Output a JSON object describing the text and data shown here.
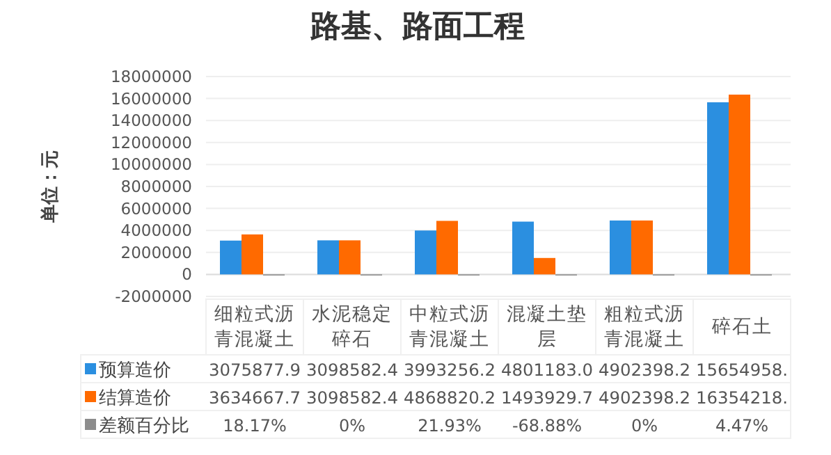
{
  "chart_data": {
    "type": "bar",
    "title": "路基、路面工程",
    "ylabel": "单位：元",
    "categories": [
      "细粒式沥青混凝土",
      "水泥稳定碎石",
      "中粒式沥青混凝土",
      "混凝土垫层",
      "粗粒式沥青混凝土",
      "碎石土"
    ],
    "series": [
      {
        "name": "预算造价",
        "color": "#2b8fe0",
        "values": [
          3075877.9,
          3098582.4,
          3993256.2,
          4801183.0,
          4902398.2,
          15654958
        ],
        "value_labels": [
          "3075877.9",
          "3098582.4",
          "3993256.2",
          "4801183.0",
          "4902398.2",
          "15654958."
        ]
      },
      {
        "name": "结算造价",
        "color": "#ff6a00",
        "values": [
          3634667.7,
          3098582.4,
          4868820.2,
          1493929.7,
          4902398.2,
          16354218
        ],
        "value_labels": [
          "3634667.7",
          "3098582.4",
          "4868820.2",
          "1493929.7",
          "4902398.2",
          "16354218."
        ]
      },
      {
        "name": "差额百分比",
        "color": "#8c8c8c",
        "values": [
          18.17,
          0,
          21.93,
          -68.88,
          0,
          4.47
        ],
        "value_labels": [
          "18.17%",
          "0%",
          "21.93%",
          "-68.88%",
          "0%",
          "4.47%"
        ]
      }
    ],
    "ylim": [
      -2000000,
      18000000
    ],
    "yticks": [
      -2000000,
      0,
      2000000,
      4000000,
      6000000,
      8000000,
      10000000,
      12000000,
      14000000,
      16000000,
      18000000
    ],
    "grid": "y",
    "legend": "bottom left"
  }
}
